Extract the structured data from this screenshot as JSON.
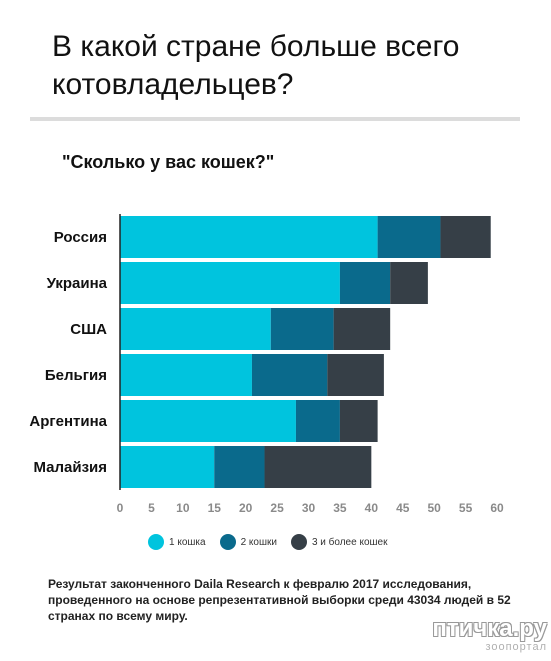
{
  "title": "В какой стране больше всего котовладельцев?",
  "footnote": "Результат законченного Daila Research к февралю 2017 исследования, проведенного на основе репрезентативной выборки среди 43034 людей в 52 странах по всему миру.",
  "watermark": {
    "main": "птичка.ру",
    "sub": "зоопортал"
  },
  "colors": {
    "one_cat": "#00c4de",
    "two_cats": "#0a6a8c",
    "three_plus": "#363f47",
    "axis": "#222222"
  },
  "chart_data": {
    "type": "bar",
    "orientation": "horizontal",
    "stacked": true,
    "title": "\"Сколько у вас кошек?\"",
    "categories": [
      "Россия",
      "Украина",
      "США",
      "Бельгия",
      "Аргентина",
      "Малайзия"
    ],
    "series": [
      {
        "name": "1 кошка",
        "values": [
          41,
          35,
          24,
          21,
          28,
          15
        ]
      },
      {
        "name": "2 кошки",
        "values": [
          10,
          8,
          10,
          12,
          7,
          8
        ]
      },
      {
        "name": "3 и более кошек",
        "values": [
          8,
          6,
          9,
          9,
          6,
          17
        ]
      }
    ],
    "xlim": [
      0,
      60
    ],
    "xticks": [
      0,
      5,
      10,
      15,
      20,
      25,
      30,
      35,
      40,
      45,
      50,
      55,
      60
    ],
    "grid": false,
    "legend_position": "bottom"
  }
}
